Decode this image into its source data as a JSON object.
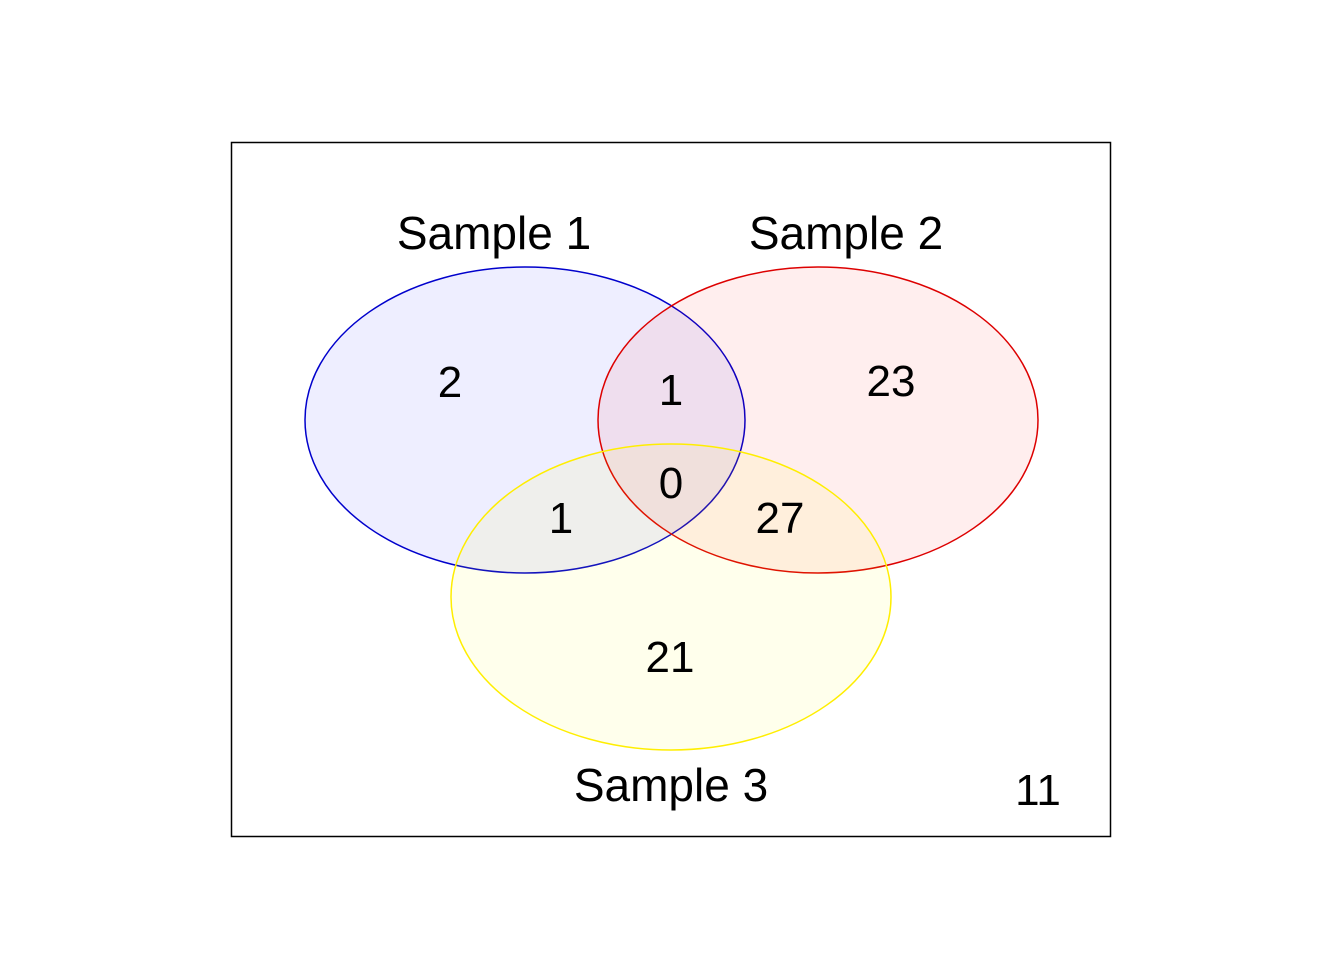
{
  "diagram": {
    "type": "venn-3",
    "sets": [
      {
        "label": "Sample 1",
        "color": "#0000cc",
        "fill": "#e6e6fa"
      },
      {
        "label": "Sample 2",
        "color": "#dd0000",
        "fill": "#fce6e6"
      },
      {
        "label": "Sample 3",
        "color": "#ffee00",
        "fill": "#fffde0"
      }
    ],
    "regions": {
      "only_1": "2",
      "only_2": "23",
      "only_3": "21",
      "s1_s2": "1",
      "s1_s3": "1",
      "s2_s3": "27",
      "all_three": "0",
      "outside": "11"
    }
  }
}
